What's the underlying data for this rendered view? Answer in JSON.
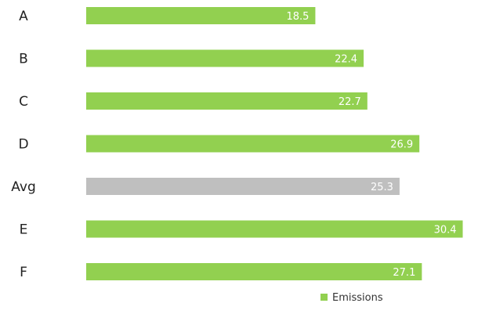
{
  "chart_data": {
    "type": "bar",
    "orientation": "horizontal",
    "categories": [
      "A",
      "B",
      "C",
      "D",
      "Avg",
      "E",
      "F"
    ],
    "values": [
      18.5,
      22.4,
      22.7,
      26.9,
      25.3,
      30.4,
      27.1
    ],
    "highlight_category": "Avg",
    "series": [
      {
        "name": "Emissions",
        "values": [
          18.5,
          22.4,
          22.7,
          26.9,
          25.3,
          30.4,
          27.1
        ]
      }
    ],
    "title": "",
    "xlabel": "",
    "ylabel": "",
    "xlim": [
      0,
      31
    ],
    "grid": false,
    "legend_position": "bottom-right",
    "colors": {
      "series": "#92d050",
      "highlight": "#bfbfbf",
      "value_label": "#ffffff"
    }
  }
}
